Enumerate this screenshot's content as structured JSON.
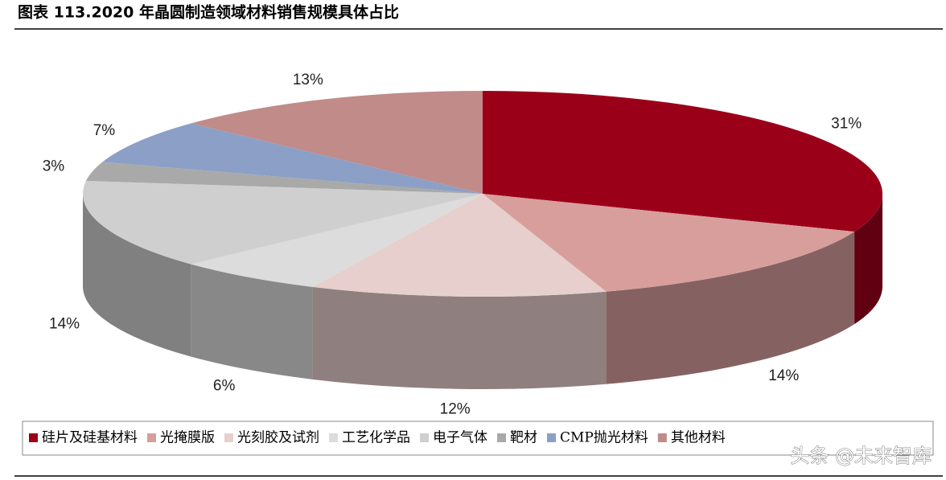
{
  "chart_data": {
    "type": "pie3d",
    "title": "图表 113.2020 年晶圆制造领域材料销售规模具体占比",
    "categories": [
      "硅片及硅基材料",
      "光掩膜版",
      "光刻胶及试剂",
      "工艺化学品",
      "电子气体",
      "靶材",
      "CMP抛光材料",
      "其他材料"
    ],
    "values": [
      31,
      14,
      12,
      6,
      14,
      3,
      7,
      13
    ],
    "value_labels": [
      "31%",
      "14%",
      "12%",
      "6%",
      "14%",
      "3%",
      "7%",
      "13%"
    ],
    "colors": [
      "#9b0019",
      "#d79e9c",
      "#e6cfcd",
      "#dcdcdc",
      "#cfcfcf",
      "#a9a9a9",
      "#8c9fc6",
      "#c08b89"
    ],
    "legend": "bottom"
  },
  "watermark": "头条 @未来智库"
}
